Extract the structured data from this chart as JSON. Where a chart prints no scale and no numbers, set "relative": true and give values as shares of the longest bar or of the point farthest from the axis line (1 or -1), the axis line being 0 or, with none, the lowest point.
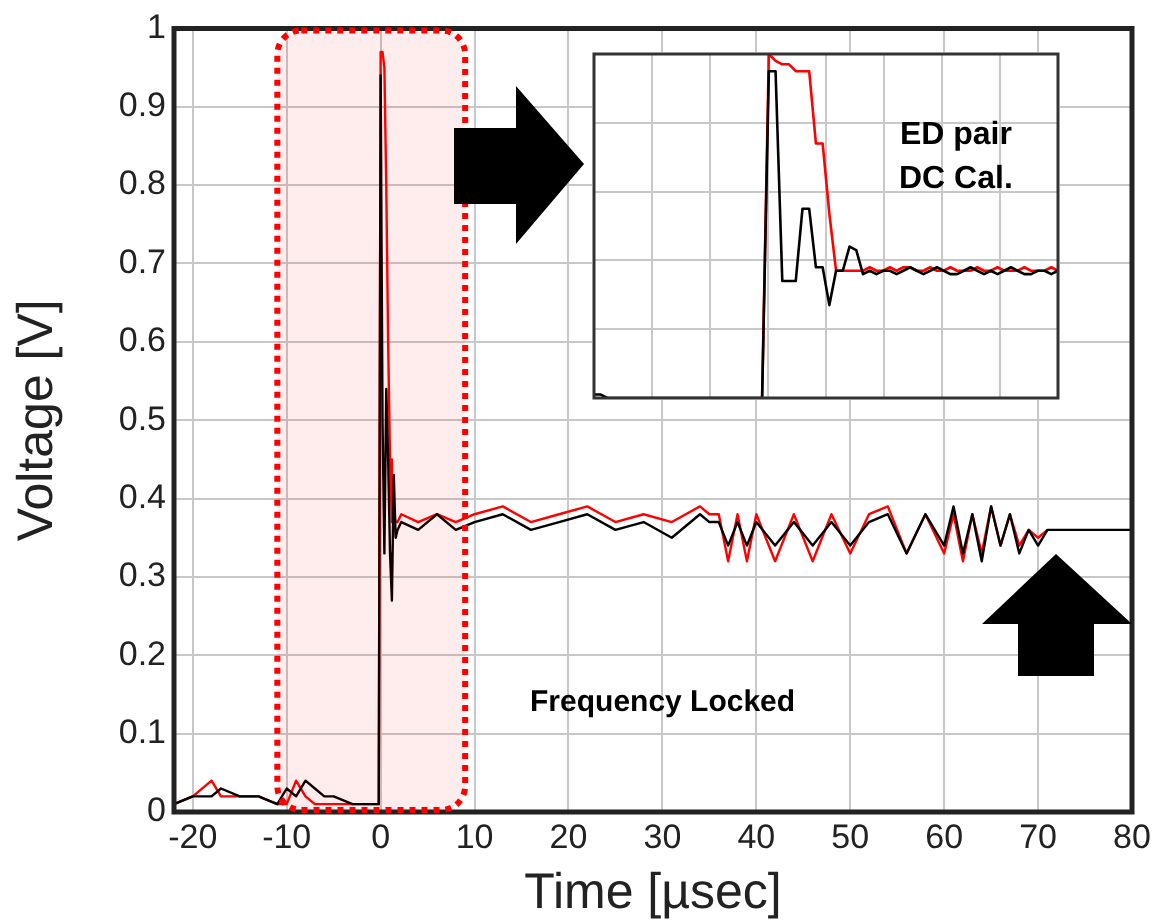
{
  "chart_data": [
    {
      "type": "line",
      "xlabel": "Time [µsec]",
      "ylabel": "Voltage [V]",
      "x": [
        -22,
        -20,
        -18,
        -17,
        -15,
        -13,
        -11,
        -10,
        -9,
        -8,
        -7,
        -6,
        -5,
        -3,
        -1,
        -0.2,
        0,
        0.2,
        0.4,
        0.6,
        0.8,
        1.0,
        1.2,
        1.4,
        1.6,
        1.8,
        2.2,
        4,
        6,
        8,
        10,
        13,
        16,
        19,
        22,
        25,
        28,
        31,
        34,
        35,
        36,
        37,
        38,
        39,
        40,
        42,
        44,
        46,
        48,
        50,
        52,
        54,
        56,
        58,
        60,
        61,
        62,
        63,
        64,
        65,
        66,
        67,
        68,
        69,
        70,
        71,
        72,
        76,
        80
      ],
      "series": [
        {
          "color": "#ff0000",
          "values": [
            0.01,
            0.02,
            0.04,
            0.02,
            0.02,
            0.02,
            0.01,
            0.01,
            0.04,
            0.02,
            0.01,
            0.01,
            0.01,
            0.01,
            0.01,
            0.01,
            0.97,
            0.97,
            0.95,
            0.8,
            0.6,
            0.45,
            0.37,
            0.38,
            0.37,
            0.37,
            0.38,
            0.37,
            0.38,
            0.37,
            0.38,
            0.39,
            0.37,
            0.38,
            0.39,
            0.37,
            0.38,
            0.37,
            0.39,
            0.38,
            0.38,
            0.32,
            0.38,
            0.32,
            0.38,
            0.32,
            0.38,
            0.32,
            0.38,
            0.33,
            0.38,
            0.39,
            0.33,
            0.38,
            0.33,
            0.38,
            0.32,
            0.38,
            0.33,
            0.39,
            0.34,
            0.38,
            0.34,
            0.36,
            0.35,
            0.36,
            null,
            null,
            null
          ]
        },
        {
          "color": "#000000",
          "values": [
            0.01,
            0.02,
            0.02,
            0.03,
            0.02,
            0.02,
            0.01,
            0.03,
            0.02,
            0.04,
            0.03,
            0.02,
            0.02,
            0.01,
            0.01,
            0.01,
            0.94,
            0.5,
            0.33,
            0.54,
            0.45,
            0.33,
            0.27,
            0.43,
            0.35,
            0.36,
            0.37,
            0.36,
            0.38,
            0.36,
            0.37,
            0.38,
            0.36,
            0.37,
            0.38,
            0.36,
            0.37,
            0.35,
            0.38,
            0.37,
            0.37,
            0.34,
            0.37,
            0.34,
            0.37,
            0.34,
            0.37,
            0.34,
            0.37,
            0.34,
            0.37,
            0.38,
            0.33,
            0.38,
            0.34,
            0.39,
            0.33,
            0.38,
            0.32,
            0.39,
            0.34,
            0.38,
            0.33,
            0.36,
            0.34,
            0.36,
            0.36,
            0.36,
            0.36
          ]
        }
      ],
      "xlim": [
        -22,
        80
      ],
      "xticks": [
        -20,
        -10,
        0,
        10,
        20,
        30,
        40,
        50,
        60,
        70,
        80
      ],
      "ylim": [
        0,
        1
      ],
      "yticks": [
        0,
        0.1,
        0.2,
        0.3,
        0.4,
        0.5,
        0.6,
        0.7,
        0.8,
        0.9,
        1
      ],
      "grid": true,
      "legend": false,
      "marker": "none",
      "line_style": "solid",
      "bands": [
        {
          "axis": "x",
          "from": -11,
          "to": 9,
          "color": "#ff0000"
        }
      ],
      "annotations": [
        "Frequency Locked"
      ]
    },
    {
      "type": "line",
      "relative": true,
      "tick_labels": false,
      "grid": true,
      "legend": false,
      "marker": "none",
      "line_style": "solid",
      "categories": [
        null,
        null,
        null,
        null,
        null,
        null,
        null,
        null,
        null,
        null,
        null,
        null,
        null,
        null,
        null,
        null,
        null,
        null,
        null,
        null,
        null,
        null,
        null,
        null,
        null,
        null,
        null,
        null,
        null,
        null,
        null,
        null,
        null,
        null,
        null,
        null,
        null,
        null,
        null,
        null,
        null,
        null,
        null,
        null,
        null,
        null,
        null,
        null,
        null,
        null,
        null,
        null,
        null,
        null,
        null,
        null,
        null,
        null,
        null,
        null,
        null,
        null,
        null,
        null,
        null,
        null,
        null,
        null,
        null,
        null
      ],
      "series": [
        {
          "color": "#ff0000",
          "values": [
            null,
            null,
            null,
            null,
            null,
            null,
            null,
            null,
            null,
            null,
            null,
            null,
            null,
            null,
            null,
            null,
            null,
            null,
            null,
            null,
            null,
            null,
            null,
            null,
            null,
            0,
            1,
            0.98,
            0.97,
            0.97,
            0.95,
            0.95,
            0.95,
            0.74,
            0.74,
            0.535,
            0.37,
            0.37,
            0.37,
            0.37,
            0.37,
            0.38,
            0.37,
            0.37,
            0.38,
            0.37,
            0.38,
            0.38,
            0.37,
            0.37,
            0.38,
            0.37,
            0.37,
            0.38,
            0.37,
            0.37,
            0.37,
            0.38,
            0.37,
            0.37,
            0.38,
            0.37,
            0.37,
            0.37,
            0.38,
            0.37,
            0.37,
            0.37,
            0.38,
            0.37
          ]
        },
        {
          "color": "#000000",
          "values": [
            0.01,
            0.01,
            0,
            0,
            0,
            0,
            0,
            0,
            0,
            0,
            0,
            0,
            0,
            0,
            0,
            0,
            0,
            0,
            0,
            0,
            0,
            0,
            0,
            0,
            0,
            0,
            0.95,
            0.95,
            0.34,
            0.34,
            0.34,
            0.55,
            0.55,
            0.38,
            0.38,
            0.27,
            0.37,
            0.37,
            0.44,
            0.43,
            0.36,
            0.37,
            0.36,
            0.37,
            0.37,
            0.36,
            0.37,
            0.38,
            0.37,
            0.36,
            0.37,
            0.38,
            0.37,
            0.36,
            0.36,
            0.37,
            0.38,
            0.37,
            0.36,
            0.37,
            0.36,
            0.37,
            0.38,
            0.37,
            0.36,
            0.36,
            0.37,
            0.37,
            0.36,
            0.37
          ]
        }
      ],
      "annotations": [
        "ED pair\nDC Cal."
      ]
    }
  ]
}
